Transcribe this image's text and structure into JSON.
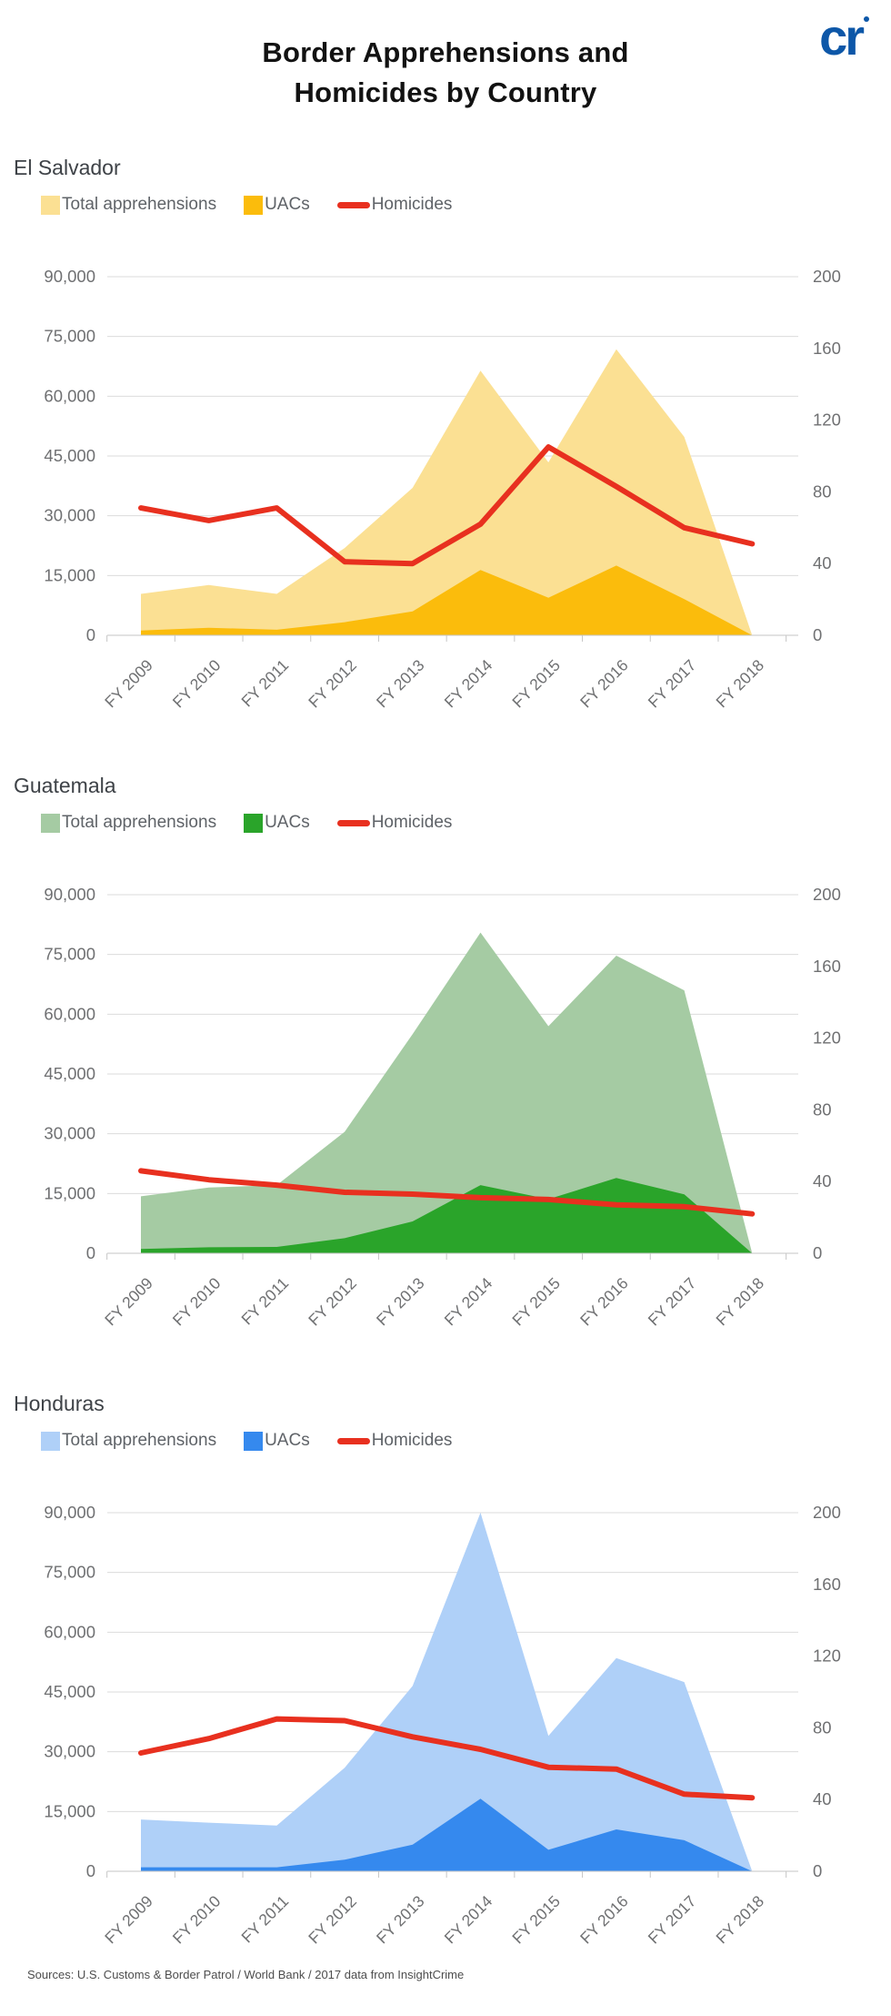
{
  "page": {
    "title_line1": "Border Apprehensions and",
    "title_line2": "Homicides by Country",
    "logo_text": "cr",
    "sources": "Sources: U.S. Customs & Border Patrol / World Bank / 2017 data from InsightCrime"
  },
  "colors": {
    "logo_blue": "#0d57a8",
    "homicide_red": "#e8301f",
    "grid": "#dbdbdb",
    "axis_line": "#c6c6c6",
    "axis_text": "#6f7072",
    "heading_text": "#3e4247",
    "legend_text": "#5f6368"
  },
  "axes": {
    "left": {
      "max": 90000,
      "ticks": [
        {
          "label": "0",
          "value": 0
        },
        {
          "label": "15,000",
          "value": 15000
        },
        {
          "label": "30,000",
          "value": 30000
        },
        {
          "label": "45,000",
          "value": 45000
        },
        {
          "label": "60,000",
          "value": 60000
        },
        {
          "label": "75,000",
          "value": 75000
        },
        {
          "label": "90,000",
          "value": 90000
        }
      ]
    },
    "right": {
      "max": 200,
      "ticks": [
        {
          "label": "0",
          "value": 0
        },
        {
          "label": "40",
          "value": 40
        },
        {
          "label": "80",
          "value": 80
        },
        {
          "label": "120",
          "value": 120
        },
        {
          "label": "160",
          "value": 160
        },
        {
          "label": "200",
          "value": 200
        }
      ]
    }
  },
  "chart_data": [
    {
      "type": "area",
      "id": "el-salvador",
      "country": "El Salvador",
      "categories": [
        "FY 2009",
        "FY 2010",
        "FY 2011",
        "FY 2012",
        "FY 2013",
        "FY 2014",
        "FY 2015",
        "FY 2016",
        "FY 2017",
        "FY 2018"
      ],
      "legend": [
        "Total apprehensions",
        "UACs",
        "Homicides"
      ],
      "colors": {
        "total": "#fbe093",
        "uac": "#fbbc0c",
        "homicides": "#e8301f"
      },
      "left_axis_range": [
        0,
        90000
      ],
      "right_axis_range": [
        0,
        200
      ],
      "series": [
        {
          "name": "Total apprehensions",
          "axis": "left",
          "values": [
            10400,
            12600,
            10400,
            21900,
            37000,
            66400,
            43400,
            71800,
            49800,
            0
          ]
        },
        {
          "name": "UACs",
          "axis": "left",
          "values": [
            1200,
            1900,
            1400,
            3300,
            6000,
            16400,
            9400,
            17500,
            9100,
            0
          ]
        },
        {
          "name": "Homicides",
          "axis": "right",
          "values": [
            71,
            64,
            71,
            41,
            40,
            62,
            105,
            83,
            60,
            51
          ]
        }
      ]
    },
    {
      "type": "area",
      "id": "guatemala",
      "country": "Guatemala",
      "categories": [
        "FY 2009",
        "FY 2010",
        "FY 2011",
        "FY 2012",
        "FY 2013",
        "FY 2014",
        "FY 2015",
        "FY 2016",
        "FY 2017",
        "FY 2018"
      ],
      "legend": [
        "Total apprehensions",
        "UACs",
        "Homicides"
      ],
      "colors": {
        "total": "#a5cba3",
        "uac": "#2aa42a",
        "homicides": "#e8301f"
      },
      "left_axis_range": [
        0,
        90000
      ],
      "right_axis_range": [
        0,
        200
      ],
      "series": [
        {
          "name": "Total apprehensions",
          "axis": "left",
          "values": [
            14300,
            16500,
            17100,
            30500,
            55000,
            80500,
            57000,
            74700,
            66000,
            0
          ]
        },
        {
          "name": "UACs",
          "axis": "left",
          "values": [
            1100,
            1500,
            1600,
            3800,
            8000,
            17100,
            13600,
            18900,
            14800,
            0
          ]
        },
        {
          "name": "Homicides",
          "axis": "right",
          "values": [
            46,
            41,
            38,
            34,
            33,
            31,
            30,
            27,
            26,
            22
          ]
        }
      ]
    },
    {
      "type": "area",
      "id": "honduras",
      "country": "Honduras",
      "categories": [
        "FY 2009",
        "FY 2010",
        "FY 2011",
        "FY 2012",
        "FY 2013",
        "FY 2014",
        "FY 2015",
        "FY 2016",
        "FY 2017",
        "FY 2018"
      ],
      "legend": [
        "Total apprehensions",
        "UACs",
        "Homicides"
      ],
      "colors": {
        "total": "#afd0f8",
        "uac": "#3589ee",
        "homicides": "#e8301f"
      },
      "left_axis_range": [
        0,
        90000
      ],
      "right_axis_range": [
        0,
        200
      ],
      "series": [
        {
          "name": "Total apprehensions",
          "axis": "left",
          "values": [
            13000,
            12200,
            11500,
            26000,
            46500,
            90000,
            34000,
            53500,
            47500,
            0
          ]
        },
        {
          "name": "UACs",
          "axis": "left",
          "values": [
            1000,
            1000,
            1000,
            2900,
            6700,
            18200,
            5400,
            10500,
            7800,
            0
          ]
        },
        {
          "name": "Homicides",
          "axis": "right",
          "values": [
            66,
            74,
            85,
            84,
            75,
            68,
            58,
            57,
            43,
            41
          ]
        }
      ]
    }
  ]
}
